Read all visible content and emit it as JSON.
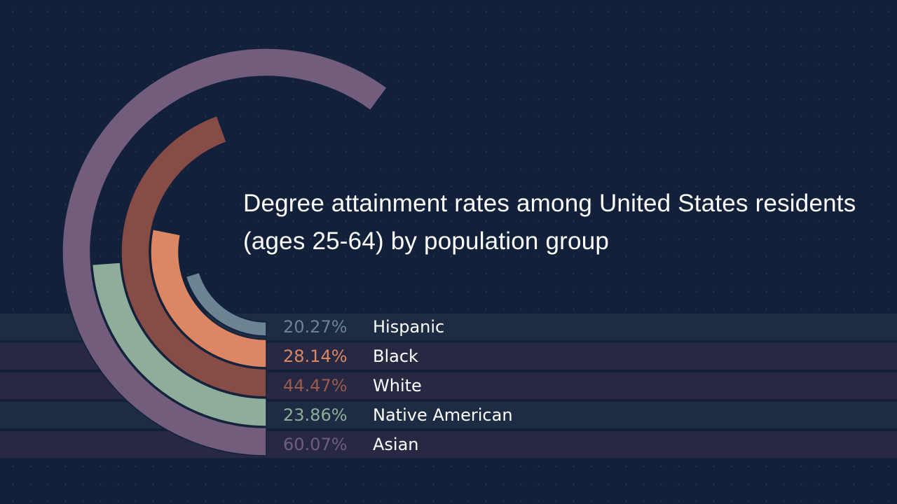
{
  "title": "Degree attainment rates among United States residents (ages 25-64) by population group",
  "chart_data": {
    "type": "radial-bar",
    "title": "Degree attainment rates among United States residents (ages 25-64) by population group",
    "unit": "%",
    "max_value": 100,
    "series": [
      {
        "label": "Hispanic",
        "value": 20.27,
        "display": "20.27%",
        "color": "#6c8394",
        "text_color": "#6c8394",
        "band_color": "#1d2c43"
      },
      {
        "label": "Black",
        "value": 28.14,
        "display": "28.14%",
        "color": "#dc8663",
        "text_color": "#dc8663",
        "band_color": "#262941"
      },
      {
        "label": "White",
        "value": 44.47,
        "display": "44.47%",
        "color": "#874c45",
        "text_color": "#9a5a4c",
        "band_color": "#262941"
      },
      {
        "label": "Native American",
        "value": 23.86,
        "display": "23.86%",
        "color": "#8eae9b",
        "text_color": "#8eae9b",
        "band_color": "#1d2c43"
      },
      {
        "label": "Asian",
        "value": 60.07,
        "display": "60.07%",
        "color": "#735d7c",
        "text_color": "#735d7c",
        "band_color": "#262941"
      }
    ]
  }
}
